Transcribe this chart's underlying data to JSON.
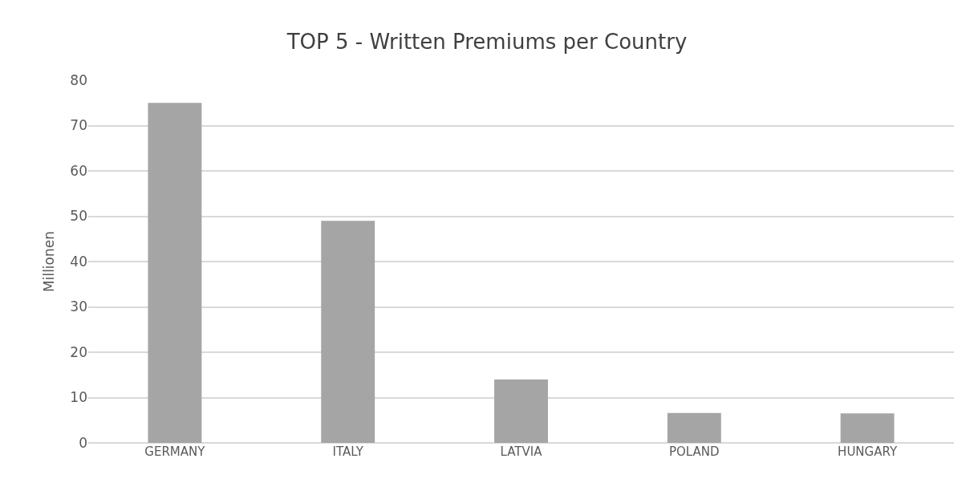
{
  "chart_data": {
    "type": "bar",
    "title": "TOP 5 - Written Premiums per Country",
    "ylabel": "Millionen",
    "categories": [
      "GERMANY",
      "ITALY",
      "LATVIA",
      "POLAND",
      "HUNGARY"
    ],
    "values": [
      75,
      49,
      14,
      6.6,
      6.5
    ],
    "color": "#a5a5a5",
    "ylim": [
      0,
      80
    ],
    "yticks": [
      0,
      10,
      20,
      30,
      40,
      50,
      60,
      70,
      80
    ],
    "grid": "y",
    "legend": false
  }
}
